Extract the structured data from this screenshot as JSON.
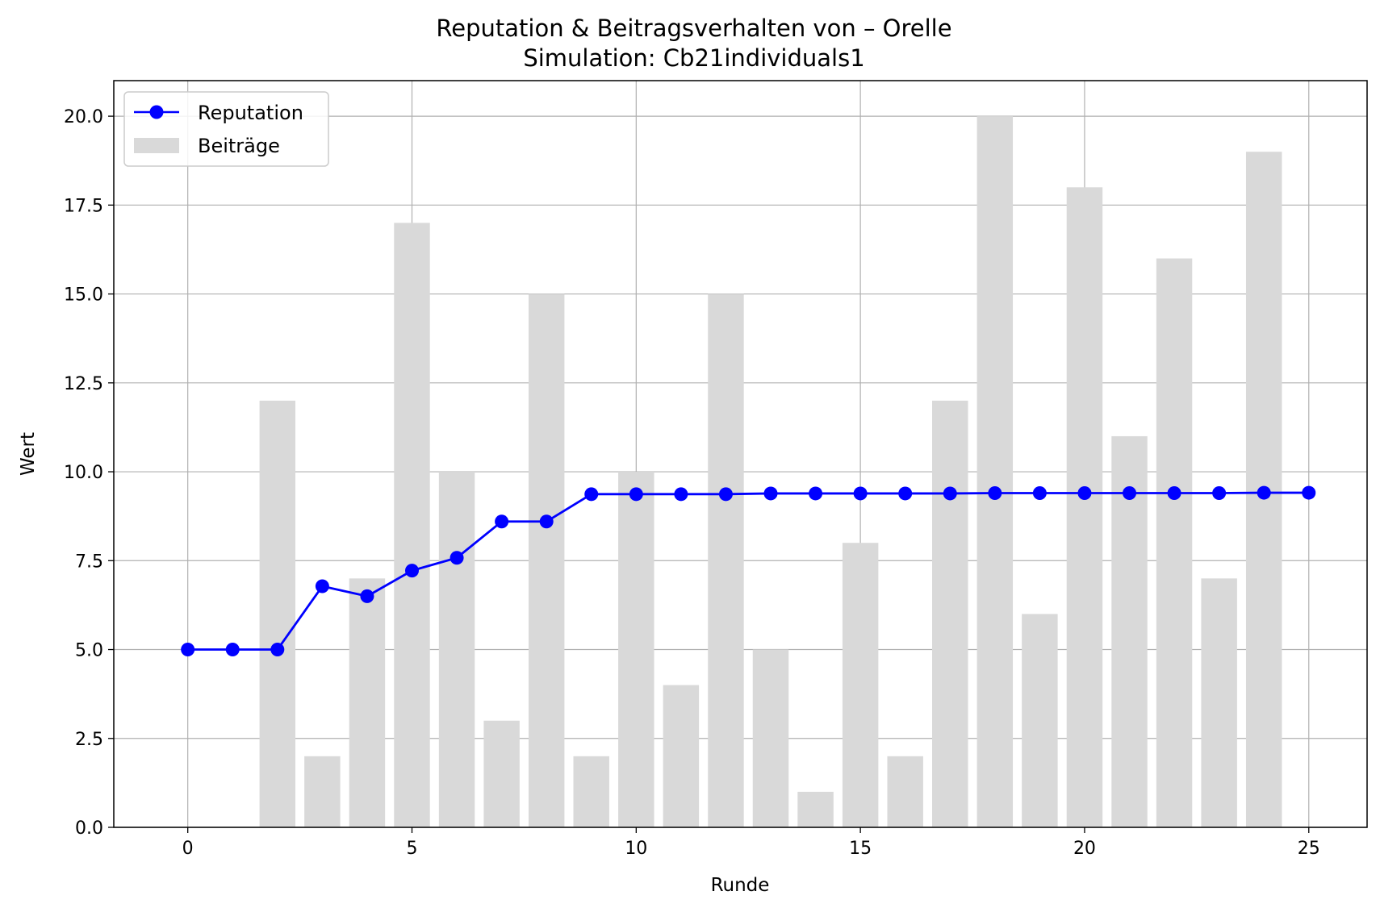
{
  "chart_data": {
    "type": "bar+line",
    "title": "Reputation & Beitragsverhalten von – Orelle",
    "subtitle": "Simulation: Cb21individuals1",
    "xlabel": "Runde",
    "ylabel": "Wert",
    "xlim": [
      -1.65,
      26.3
    ],
    "ylim": [
      0,
      21
    ],
    "xticks": [
      0,
      5,
      10,
      15,
      20,
      25
    ],
    "yticks": [
      "0.0",
      "2.5",
      "5.0",
      "7.5",
      "10.0",
      "12.5",
      "15.0",
      "17.5",
      "20.0"
    ],
    "grid": true,
    "legend_position": "top-left",
    "bars": {
      "name": "Beiträge",
      "color": "#d9d9d9",
      "x": [
        0,
        1,
        2,
        3,
        4,
        5,
        6,
        7,
        8,
        9,
        10,
        11,
        12,
        13,
        14,
        15,
        16,
        17,
        18,
        19,
        20,
        21,
        22,
        23,
        24,
        25
      ],
      "values": [
        0,
        0,
        12,
        2,
        7,
        17,
        10,
        3,
        15,
        2,
        10,
        4,
        15,
        5,
        1,
        8,
        2,
        12,
        20,
        6,
        18,
        11,
        16,
        7,
        19,
        0
      ]
    },
    "line": {
      "name": "Reputation",
      "color": "#0000ff",
      "x": [
        0,
        1,
        2,
        3,
        4,
        5,
        6,
        7,
        8,
        9,
        10,
        11,
        12,
        13,
        14,
        15,
        16,
        17,
        18,
        19,
        20,
        21,
        22,
        23,
        24,
        25
      ],
      "values": [
        5.0,
        5.0,
        5.0,
        6.78,
        6.5,
        7.22,
        7.58,
        8.6,
        8.6,
        9.37,
        9.37,
        9.37,
        9.37,
        9.39,
        9.39,
        9.39,
        9.39,
        9.39,
        9.4,
        9.4,
        9.4,
        9.4,
        9.4,
        9.4,
        9.41,
        9.41
      ]
    }
  }
}
